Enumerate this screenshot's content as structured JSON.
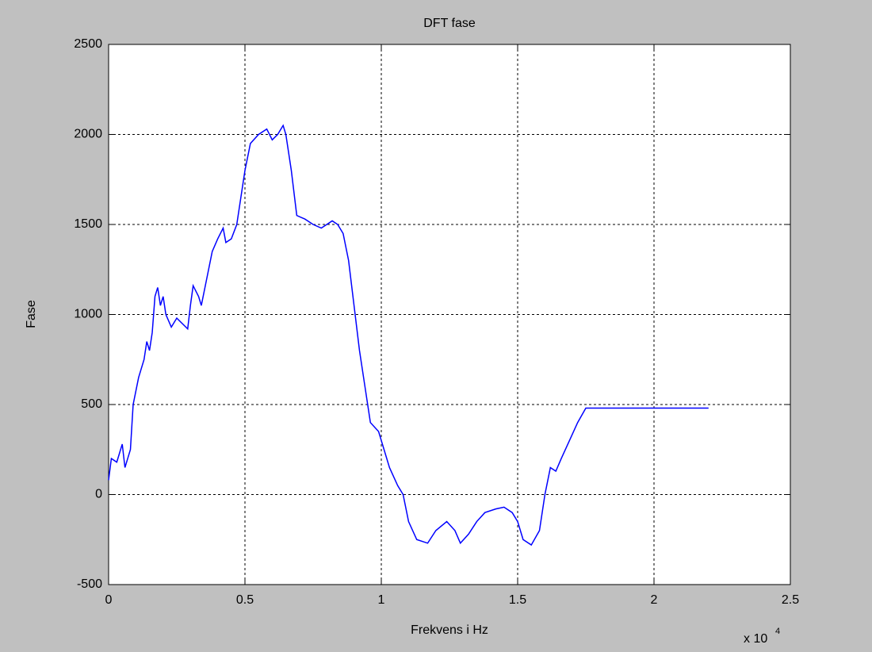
{
  "chart_data": {
    "type": "line",
    "title": "DFT fase",
    "x_label": "Frekvens i Hz",
    "y_label": "Fase",
    "x_scale_label": "x 10",
    "x_scale_power": "4",
    "x": [
      0,
      0.01,
      0.03,
      0.05,
      0.06,
      0.08,
      0.09,
      0.11,
      0.13,
      0.14,
      0.15,
      0.16,
      0.17,
      0.18,
      0.19,
      0.2,
      0.21,
      0.23,
      0.25,
      0.27,
      0.29,
      0.3,
      0.31,
      0.33,
      0.34,
      0.36,
      0.38,
      0.4,
      0.42,
      0.43,
      0.45,
      0.47,
      0.48,
      0.5,
      0.52,
      0.55,
      0.58,
      0.6,
      0.62,
      0.64,
      0.65,
      0.67,
      0.69,
      0.72,
      0.75,
      0.78,
      0.8,
      0.82,
      0.84,
      0.86,
      0.88,
      0.9,
      0.92,
      0.94,
      0.96,
      0.99,
      1.01,
      1.03,
      1.06,
      1.08,
      1.1,
      1.13,
      1.17,
      1.2,
      1.24,
      1.27,
      1.29,
      1.32,
      1.35,
      1.38,
      1.42,
      1.45,
      1.48,
      1.5,
      1.52,
      1.55,
      1.58,
      1.6,
      1.62,
      1.64,
      1.66,
      1.69,
      1.72,
      1.75,
      2.2
    ],
    "series": [
      {
        "color": "#0000ff",
        "values": [
          80,
          200,
          180,
          280,
          150,
          250,
          500,
          650,
          750,
          850,
          800,
          900,
          1100,
          1150,
          1050,
          1100,
          1000,
          930,
          980,
          950,
          920,
          1050,
          1160,
          1100,
          1050,
          1200,
          1350,
          1420,
          1480,
          1400,
          1420,
          1500,
          1600,
          1800,
          1950,
          2000,
          2030,
          1970,
          2000,
          2050,
          2000,
          1800,
          1550,
          1530,
          1500,
          1480,
          1500,
          1520,
          1500,
          1450,
          1300,
          1050,
          800,
          600,
          400,
          350,
          250,
          150,
          50,
          0,
          -150,
          -250,
          -270,
          -200,
          -150,
          -200,
          -270,
          -220,
          -150,
          -100,
          -80,
          -70,
          -100,
          -150,
          -250,
          -280,
          -200,
          0,
          150,
          130,
          200,
          300,
          400,
          480,
          480
        ]
      }
    ],
    "xlim": [
      0,
      2.5
    ],
    "xticks": [
      0,
      0.5,
      1,
      1.5,
      2,
      2.5
    ],
    "ylim": [
      -500,
      2500
    ],
    "yticks": [
      -500,
      0,
      500,
      1000,
      1500,
      2000,
      2500
    ],
    "grid": true
  }
}
